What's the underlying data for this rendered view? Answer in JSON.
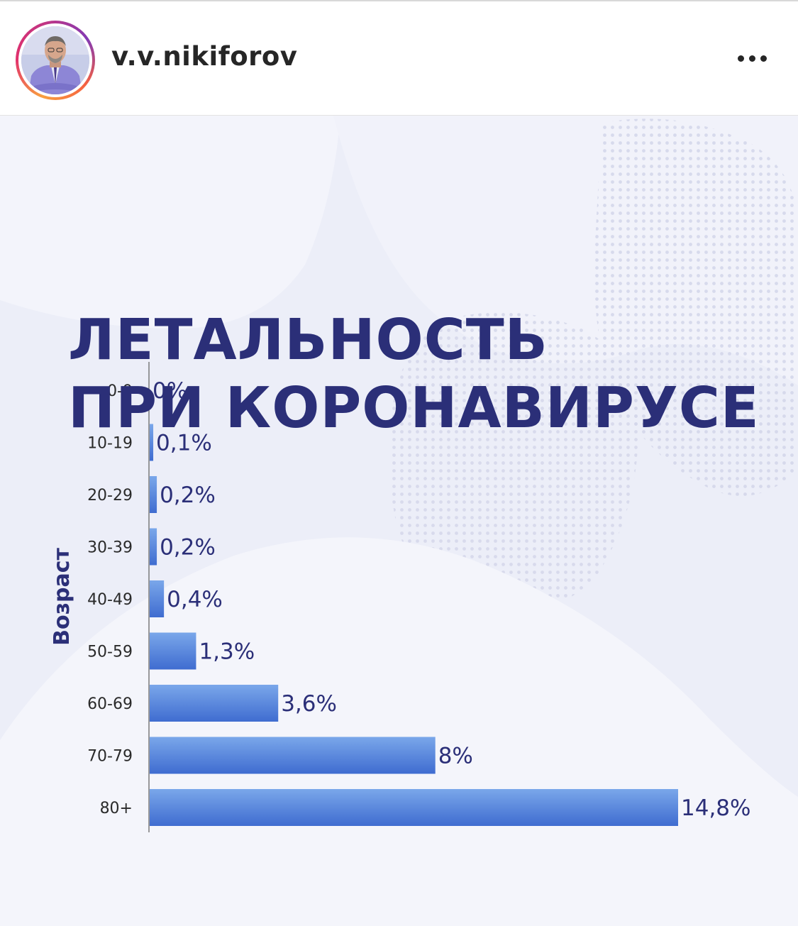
{
  "post": {
    "username": "v.v.nikiforov",
    "avatar_icon": "profile-photo",
    "more_icon": "more-horizontal-icon"
  },
  "image": {
    "title_lines": [
      "ЛЕТАЛЬНОСТЬ",
      "ПРИ КОРОНАВИРУСЕ"
    ],
    "colors": {
      "title": "#2b2f78",
      "bar_top": "#7aa7ea",
      "bar_bottom": "#3f6cd0",
      "background": "#eceef8"
    }
  },
  "chart_data": {
    "type": "bar",
    "orientation": "horizontal",
    "title": "ЛЕТАЛЬНОСТЬ ПРИ КОРОНАВИРУСЕ",
    "ylabel": "Возраст",
    "xlabel": "",
    "categories": [
      "0-9",
      "10-19",
      "20-29",
      "30-39",
      "40-49",
      "50-59",
      "60-69",
      "70-79",
      "80+"
    ],
    "values": [
      0,
      0.1,
      0.2,
      0.2,
      0.4,
      1.3,
      3.6,
      8,
      14.8
    ],
    "value_labels": [
      "0%",
      "0,1%",
      "0,2%",
      "0,2%",
      "0,4%",
      "1,3%",
      "3,6%",
      "8%",
      "14,8%"
    ],
    "xlim": [
      0,
      14.8
    ],
    "grid": false,
    "legend": "none"
  }
}
